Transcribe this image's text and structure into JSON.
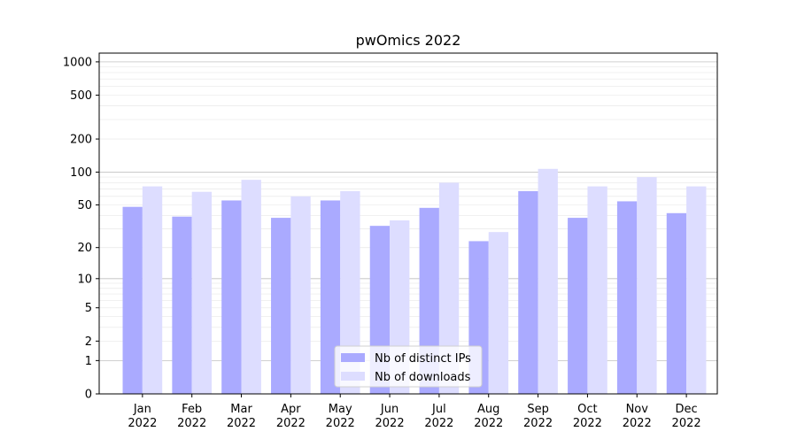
{
  "chart_data": {
    "type": "bar",
    "title": "pwOmics 2022",
    "xlabel": "",
    "ylabel": "",
    "yscale": "log1p",
    "ylim": [
      0,
      1200
    ],
    "yticks": [
      0,
      1,
      2,
      5,
      10,
      20,
      50,
      100,
      200,
      500,
      1000
    ],
    "ytick_labels": [
      "0",
      "1",
      "2",
      "5",
      "10",
      "20",
      "50",
      "100",
      "200",
      "500",
      "1000"
    ],
    "grid": true,
    "legend_position": "bottom-center",
    "categories": [
      [
        "Jan",
        "2022"
      ],
      [
        "Feb",
        "2022"
      ],
      [
        "Mar",
        "2022"
      ],
      [
        "Apr",
        "2022"
      ],
      [
        "May",
        "2022"
      ],
      [
        "Jun",
        "2022"
      ],
      [
        "Jul",
        "2022"
      ],
      [
        "Aug",
        "2022"
      ],
      [
        "Sep",
        "2022"
      ],
      [
        "Oct",
        "2022"
      ],
      [
        "Nov",
        "2022"
      ],
      [
        "Dec",
        "2022"
      ]
    ],
    "series": [
      {
        "name": "Nb of distinct IPs",
        "color": "#aaaaff",
        "values": [
          48,
          39,
          55,
          38,
          55,
          32,
          47,
          23,
          67,
          38,
          54,
          42
        ]
      },
      {
        "name": "Nb of downloads",
        "color": "#ddddff",
        "values": [
          74,
          66,
          85,
          60,
          67,
          36,
          80,
          28,
          107,
          74,
          90,
          74
        ]
      }
    ]
  }
}
